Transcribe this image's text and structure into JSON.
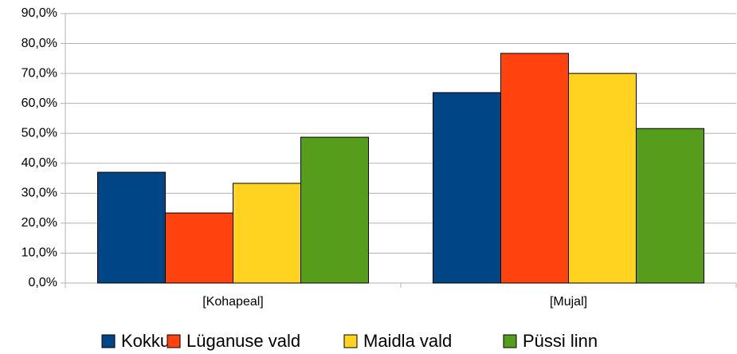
{
  "chart_data": {
    "type": "bar",
    "categories": [
      "[Kohapeal]",
      "[Mujal]"
    ],
    "series": [
      {
        "name": "Kokku",
        "color": "#004586",
        "values": [
          37.0,
          63.6
        ]
      },
      {
        "name": "Lüganuse vald",
        "color": "#ff420e",
        "values": [
          23.4,
          76.7
        ]
      },
      {
        "name": "Maidla vald",
        "color": "#ffd320",
        "values": [
          33.3,
          70.0
        ]
      },
      {
        "name": "Püssi linn",
        "color": "#579d1c",
        "values": [
          48.7,
          51.6
        ]
      }
    ],
    "ylim": [
      0,
      90
    ],
    "yticks": [
      {
        "value": 0,
        "label": "0,0%"
      },
      {
        "value": 10,
        "label": "10,0%"
      },
      {
        "value": 20,
        "label": "20,0%"
      },
      {
        "value": 30,
        "label": "30,0%"
      },
      {
        "value": 40,
        "label": "40,0%"
      },
      {
        "value": 50,
        "label": "50,0%"
      },
      {
        "value": 60,
        "label": "60,0%"
      },
      {
        "value": 70,
        "label": "70,0%"
      },
      {
        "value": 80,
        "label": "80,0%"
      },
      {
        "value": 90,
        "label": "90,0%"
      }
    ],
    "grid": true,
    "legend": "bottom"
  }
}
